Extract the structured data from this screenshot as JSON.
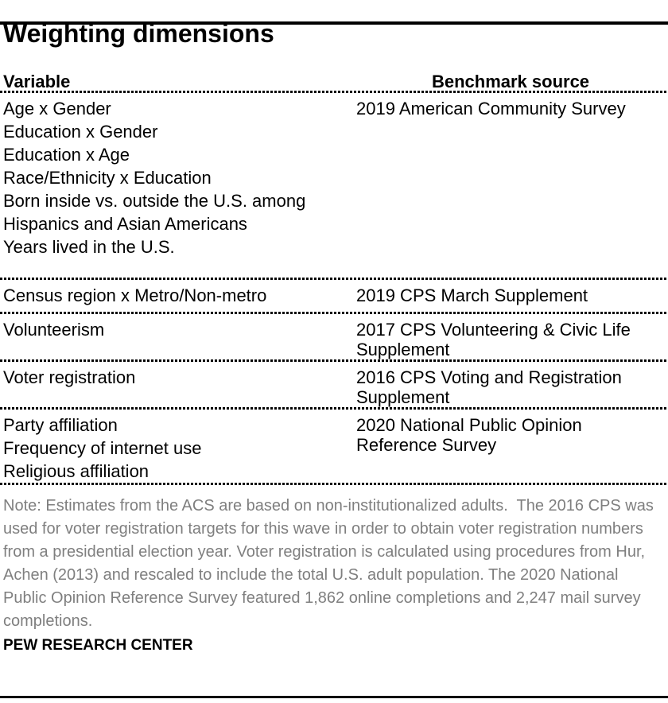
{
  "title": "Weighting dimensions",
  "table": {
    "headers": {
      "variable": "Variable",
      "benchmark": "Benchmark source"
    },
    "groups": [
      {
        "variables": [
          "Age x Gender",
          "Education x Gender",
          "Education x Age",
          "Race/Ethnicity x Education",
          "Born inside vs. outside the U.S. among\nHispanics and Asian Americans",
          "Years lived in the U.S."
        ],
        "source": "2019 American Community Survey"
      },
      {
        "variables": [
          "Census region x Metro/Non-metro"
        ],
        "source": "2019 CPS March Supplement"
      },
      {
        "variables": [
          "Volunteerism"
        ],
        "source": "2017 CPS Volunteering & Civic Life\nSupplement"
      },
      {
        "variables": [
          "Voter registration"
        ],
        "source": "2016 CPS Voting and Registration\nSupplement"
      },
      {
        "variables": [
          "Party affiliation",
          "Frequency of internet use",
          "Religious affiliation"
        ],
        "source": "2020 National Public Opinion\nReference Survey"
      }
    ]
  },
  "note": "Note: Estimates from the ACS are based on non-institutionalized adults.  The 2016 CPS was\nused for voter registration targets for this wave in order to obtain voter registration numbers\nfrom a presidential election year. Voter registration is calculated using procedures from Hur,\nAchen (2013) and rescaled to include the total U.S. adult population. The 2020 National\nPublic Opinion Reference Survey featured 1,862 online completions and 2,247 mail survey\ncompletions.",
  "footer": "PEW RESEARCH CENTER"
}
